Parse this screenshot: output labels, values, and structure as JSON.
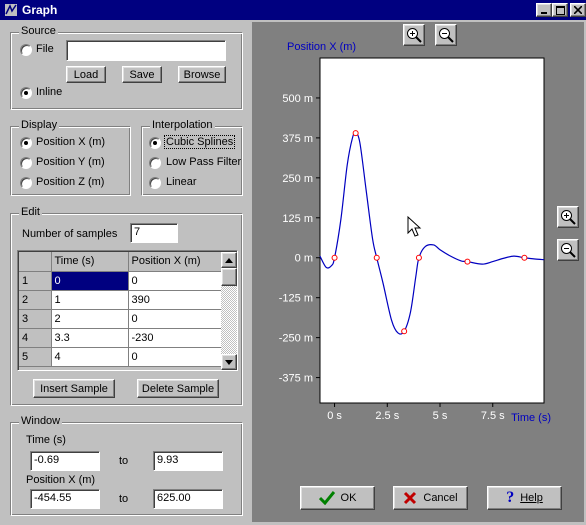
{
  "window": {
    "title": "Graph"
  },
  "source": {
    "legend": "Source",
    "file_label": "File",
    "file_value": "",
    "load": "Load",
    "save": "Save",
    "browse": "Browse",
    "inline_label": "Inline",
    "selected": "inline"
  },
  "display": {
    "legend": "Display",
    "options": [
      "Position X (m)",
      "Position Y (m)",
      "Position Z (m)"
    ],
    "selected": 0
  },
  "interpolation": {
    "legend": "Interpolation",
    "options": [
      "Cubic Splines",
      "Low Pass Filter",
      "Linear"
    ],
    "selected": 0
  },
  "edit": {
    "legend": "Edit",
    "num_samples_label": "Number of samples",
    "num_samples": "7",
    "columns": [
      "",
      "Time (s)",
      "Position X (m)"
    ],
    "rows": [
      [
        "1",
        "0",
        "0"
      ],
      [
        "2",
        "1",
        "390"
      ],
      [
        "3",
        "2",
        "0"
      ],
      [
        "4",
        "3.3",
        "-230"
      ],
      [
        "5",
        "4",
        "0"
      ]
    ],
    "insert": "Insert Sample",
    "delete": "Delete Sample"
  },
  "range": {
    "legend": "Window",
    "time_label": "Time (s)",
    "time_from": "-0.69",
    "time_to": "9.93",
    "to1": "to",
    "pos_label": "Position X (m)",
    "pos_from": "-454.55",
    "pos_to": "625.00",
    "to2": "to"
  },
  "buttons": {
    "ok": "OK",
    "cancel": "Cancel",
    "help": "Help"
  },
  "chart_data": {
    "type": "line",
    "ylabel": "Position X (m)",
    "xlabel": "Time (s)",
    "xlim": [
      -0.69,
      9.93
    ],
    "ylim": [
      -454.55,
      625.0
    ],
    "xticks": [
      0,
      2.5,
      5,
      7.5
    ],
    "xtick_labels": [
      "0 s",
      "2.5 s",
      "5 s",
      "7.5 s"
    ],
    "yticks": [
      500,
      375,
      250,
      125,
      0,
      -125,
      -250,
      -375
    ],
    "ytick_labels": [
      "500 m",
      "375 m",
      "250 m",
      "125 m",
      "0 m",
      "-125 m",
      "-250 m",
      "-375 m"
    ],
    "samples": {
      "x": [
        0,
        1,
        2,
        3.3,
        4,
        6.3,
        9
      ],
      "y": [
        0,
        390,
        0,
        -230,
        0,
        -12,
        0
      ]
    },
    "curve": {
      "x": [
        -0.69,
        -0.4,
        -0.15,
        0,
        0.3,
        0.6,
        0.85,
        1,
        1.2,
        1.5,
        1.8,
        2,
        2.3,
        2.7,
        3.0,
        3.3,
        3.6,
        3.85,
        4,
        4.3,
        4.7,
        5,
        5.5,
        6,
        6.3,
        7,
        7.5,
        8,
        8.5,
        9,
        9.5,
        9.93
      ],
      "y": [
        5,
        -30,
        -25,
        0,
        120,
        290,
        375,
        390,
        360,
        210,
        60,
        0,
        -80,
        -195,
        -235,
        -230,
        -170,
        -60,
        0,
        35,
        40,
        25,
        5,
        -10,
        -12,
        -20,
        -12,
        -2,
        5,
        0,
        -4,
        -6
      ]
    },
    "line_color": "#0000c0",
    "point_color": "#ff0000",
    "grid": false
  }
}
